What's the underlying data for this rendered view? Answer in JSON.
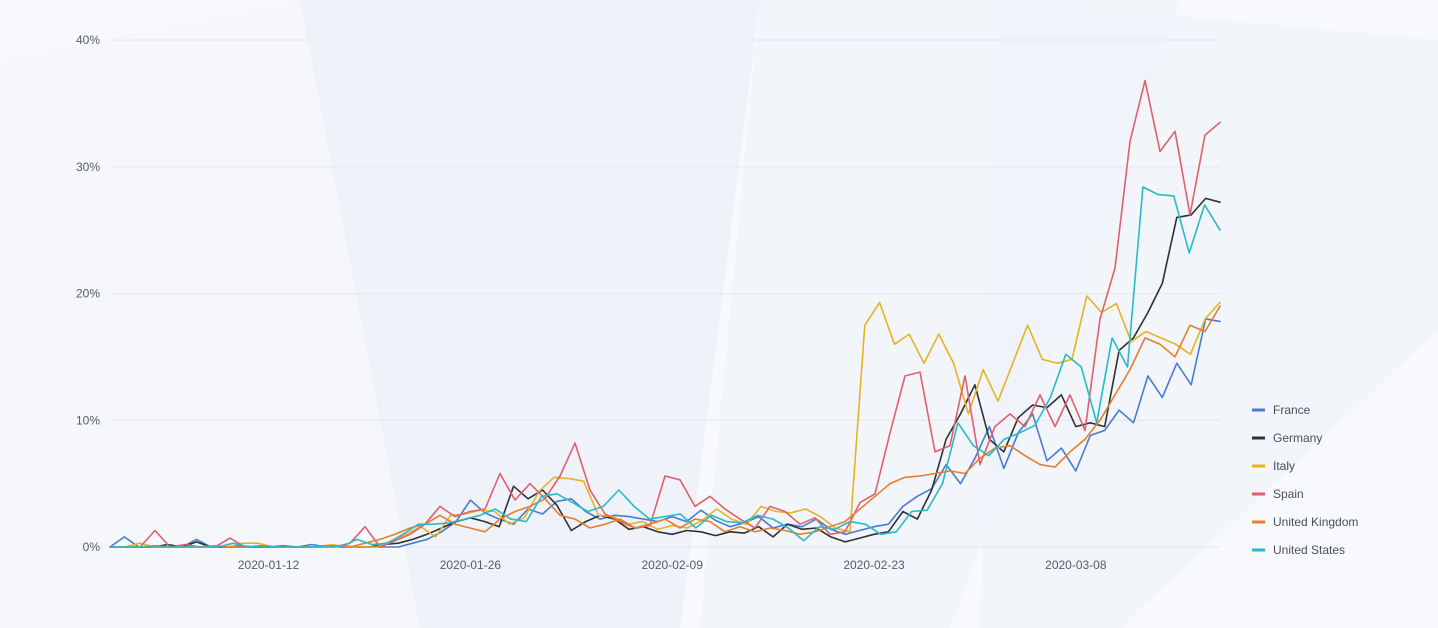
{
  "chart_data": {
    "type": "line",
    "title": "",
    "xlabel": "",
    "ylabel": "",
    "x_start": "2020-01-01",
    "x_end": "2020-03-18",
    "x_ticks": [
      "2020-01-12",
      "2020-01-26",
      "2020-02-09",
      "2020-02-23",
      "2020-03-08"
    ],
    "y_ticks": [
      0,
      10,
      20,
      30,
      40
    ],
    "y_tick_labels": [
      "0%",
      "10%",
      "20%",
      "30%",
      "40%"
    ],
    "ylim": [
      0,
      40
    ],
    "grid": true,
    "legend_position": "right",
    "series": [
      {
        "name": "France",
        "color": "#4a7bd0",
        "values": [
          0,
          0.8,
          0,
          0,
          0,
          0,
          0.6,
          0,
          0,
          0.1,
          0,
          0,
          0.1,
          0,
          0.2,
          0,
          0.1,
          0,
          0,
          0,
          0,
          0.3,
          0.6,
          1.2,
          2.0,
          3.7,
          2.7,
          2.2,
          1.8,
          3.0,
          2.6,
          3.6,
          3.8,
          2.8,
          2.2,
          2.5,
          2.4,
          2.2,
          2.0,
          2.4,
          2.0,
          2.9,
          2.1,
          1.6,
          1.9,
          2.4,
          1.5,
          1.8,
          1.6,
          2.2,
          1.4,
          1.0,
          1.3,
          1.6,
          1.8,
          3.2,
          4.0,
          4.6,
          6.5,
          5.0,
          7.0,
          9.5,
          6.2,
          9.0,
          10.5,
          6.8,
          7.8,
          6.0,
          8.8,
          9.2,
          10.8,
          9.8,
          13.5,
          11.8,
          14.5,
          12.8,
          18.0,
          17.8
        ]
      },
      {
        "name": "Germany",
        "color": "#2f3136",
        "values": [
          0,
          0,
          0,
          0,
          0.2,
          0,
          0.4,
          0,
          0,
          0,
          0,
          0,
          0,
          0,
          0,
          0.1,
          0,
          0,
          0,
          0.2,
          0.3,
          0.6,
          1.0,
          1.5,
          2.0,
          2.3,
          2.0,
          1.6,
          4.8,
          3.8,
          4.5,
          3.3,
          1.3,
          2.0,
          2.5,
          2.2,
          1.4,
          1.6,
          1.2,
          1.0,
          1.3,
          1.2,
          0.9,
          1.2,
          1.1,
          1.6,
          0.8,
          1.8,
          1.4,
          1.5,
          0.8,
          0.4,
          0.7,
          1.0,
          1.2,
          2.8,
          2.2,
          4.5,
          8.5,
          10.5,
          12.8,
          8.5,
          7.5,
          10.2,
          11.2,
          11.0,
          12.0,
          9.5,
          9.8,
          9.5,
          15.5,
          16.5,
          18.5,
          20.8,
          26.0,
          26.2,
          27.5,
          27.2
        ]
      },
      {
        "name": "Italy",
        "color": "#e6b422",
        "values": [
          0,
          0,
          0.3,
          0,
          0,
          0,
          0,
          0.1,
          0,
          0.3,
          0.3,
          0,
          0,
          0,
          0,
          0.2,
          0,
          0,
          0,
          0.5,
          1.0,
          1.6,
          0.8,
          2.5,
          2.6,
          2.9,
          2.8,
          1.8,
          2.3,
          4.4,
          5.5,
          5.4,
          5.2,
          2.5,
          2.4,
          1.8,
          2.0,
          1.4,
          1.7,
          1.5,
          2.1,
          3.0,
          2.2,
          1.8,
          3.2,
          2.8,
          2.7,
          3.0,
          2.4,
          1.5,
          1.2,
          17.5,
          19.3,
          16.0,
          16.8,
          14.5,
          16.8,
          14.5,
          10.5,
          14.0,
          11.5,
          14.5,
          17.5,
          14.8,
          14.5,
          14.8,
          19.8,
          18.5,
          19.2,
          16.2,
          17.0,
          16.5,
          16.0,
          15.2,
          18.0,
          19.3
        ]
      },
      {
        "name": "Spain",
        "color": "#e0606c",
        "values": [
          0,
          0,
          0,
          1.3,
          0,
          0.2,
          0,
          0,
          0.7,
          0,
          0,
          0,
          0,
          0,
          0,
          0,
          0.3,
          1.6,
          0,
          0.5,
          1.0,
          1.8,
          3.2,
          2.4,
          2.8,
          3.0,
          5.8,
          3.7,
          5.0,
          3.8,
          5.6,
          8.2,
          4.5,
          2.6,
          2.0,
          1.5,
          1.7,
          5.6,
          5.3,
          3.2,
          4.0,
          3.0,
          2.2,
          1.5,
          3.2,
          2.8,
          1.8,
          2.3,
          1.0,
          1.2,
          3.5,
          4.2,
          9.0,
          13.5,
          13.8,
          7.5,
          8.0,
          13.5,
          6.5,
          9.5,
          10.5,
          9.5,
          12.0,
          9.5,
          12.0,
          9.2,
          18.0,
          22.0,
          32.0,
          36.8,
          31.2,
          32.8,
          26.2,
          32.5,
          33.5
        ]
      },
      {
        "name": "United Kingdom",
        "color": "#e67e2e",
        "values": [
          0,
          0,
          0,
          0.1,
          0,
          0,
          0,
          0.1,
          0,
          0,
          0.1,
          0,
          0,
          0,
          0,
          0.1,
          0,
          0.3,
          0.6,
          1.0,
          1.5,
          1.8,
          2.5,
          1.8,
          1.5,
          1.2,
          2.2,
          2.8,
          3.2,
          3.8,
          2.5,
          2.2,
          1.5,
          1.8,
          2.2,
          1.5,
          1.8,
          2.2,
          1.5,
          2.2,
          2.0,
          1.2,
          1.6,
          1.2,
          1.5,
          1.3,
          1.0,
          1.2,
          1.6,
          2.0,
          3.0,
          4.0,
          5.0,
          5.5,
          5.6,
          5.8,
          6.0,
          5.8,
          7.0,
          7.8,
          8.0,
          7.2,
          6.5,
          6.3,
          7.5,
          8.5,
          10.0,
          12.0,
          14.0,
          16.5,
          16.0,
          15.0,
          17.5,
          17.0,
          19.0
        ]
      },
      {
        "name": "United States",
        "color": "#27bcc8",
        "values": [
          0,
          0,
          0,
          0,
          0,
          0,
          0,
          0,
          0.3,
          0,
          0.1,
          0,
          0,
          0,
          0.1,
          0,
          0.6,
          0.2,
          0.3,
          1.0,
          1.8,
          1.8,
          1.9,
          2.2,
          2.5,
          3.0,
          2.2,
          2.0,
          4.0,
          4.2,
          3.5,
          2.8,
          3.2,
          4.5,
          3.2,
          2.2,
          2.4,
          2.6,
          1.5,
          2.5,
          2.0,
          1.9,
          2.5,
          2.2,
          1.5,
          0.5,
          1.6,
          1.4,
          2.0,
          1.8,
          1.0,
          1.2,
          2.8,
          2.9,
          5.0,
          9.8,
          8.0,
          7.2,
          8.5,
          9.0,
          9.6,
          11.8,
          15.2,
          14.2,
          9.8,
          16.5,
          14.2,
          28.4,
          27.8,
          27.7,
          23.2,
          27.0,
          25.0
        ]
      }
    ]
  }
}
